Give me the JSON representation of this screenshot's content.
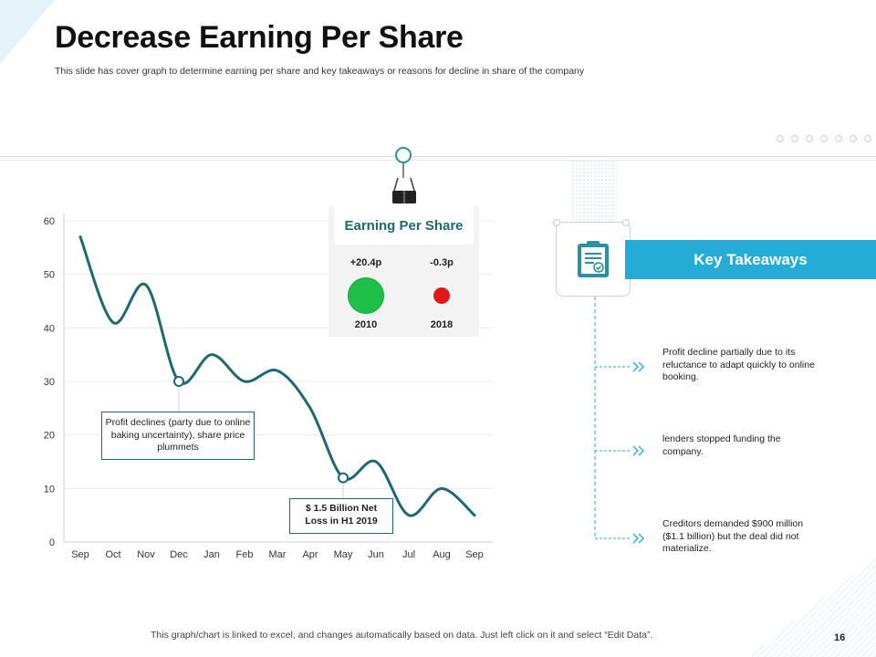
{
  "header": {
    "title": "Decrease Earning Per Share",
    "subtitle": "This slide has cover graph to determine earning per share and key takeaways or reasons for decline in share of the company"
  },
  "chart_data": {
    "type": "line",
    "title": "",
    "xlabel": "",
    "ylabel": "",
    "categories": [
      "Sep",
      "Oct",
      "Nov",
      "Dec",
      "Jan",
      "Feb",
      "Mar",
      "Apr",
      "May",
      "Jun",
      "Jul",
      "Aug",
      "Sep"
    ],
    "series": [
      {
        "name": "EPS",
        "values": [
          57,
          41,
          48,
          30,
          35,
          30,
          32,
          25,
          12,
          15,
          5,
          10,
          5
        ],
        "color": "#1d6873"
      }
    ],
    "ylim": [
      0,
      60
    ],
    "yticks": [
      0,
      10,
      20,
      30,
      40,
      50,
      60
    ],
    "grid": true,
    "highlight_points": [
      3,
      8
    ],
    "annotations": [
      {
        "point": 3,
        "text": "Profit declines (party due to online baking uncertainty), share price plummets"
      },
      {
        "point": 8,
        "text": "$ 1.5 Billion  Net Loss in H1 2019"
      }
    ]
  },
  "eps_card": {
    "title": "Earning Per Share",
    "items": [
      {
        "value": "+20.4p",
        "year": "2010",
        "color": "#1ec04a"
      },
      {
        "value": "-0.3p",
        "year": "2018",
        "color": "#e01818"
      }
    ]
  },
  "key_takeaways": {
    "title": "Key Takeaways",
    "items": [
      "Profit decline partially due to its reluctance to adapt quickly to online booking.",
      "lenders stopped funding the company.",
      "Creditors demanded $900 million ($1.1 billion) but the deal did not materialize."
    ]
  },
  "footer": {
    "note": "This graph/chart is linked to excel, and changes automatically based on data. Just left click on it and select “Edit Data”.",
    "page_number": "16"
  },
  "colors": {
    "accent": "#25acd6",
    "line": "#1d6873",
    "green": "#1ec04a",
    "red": "#e01818"
  }
}
